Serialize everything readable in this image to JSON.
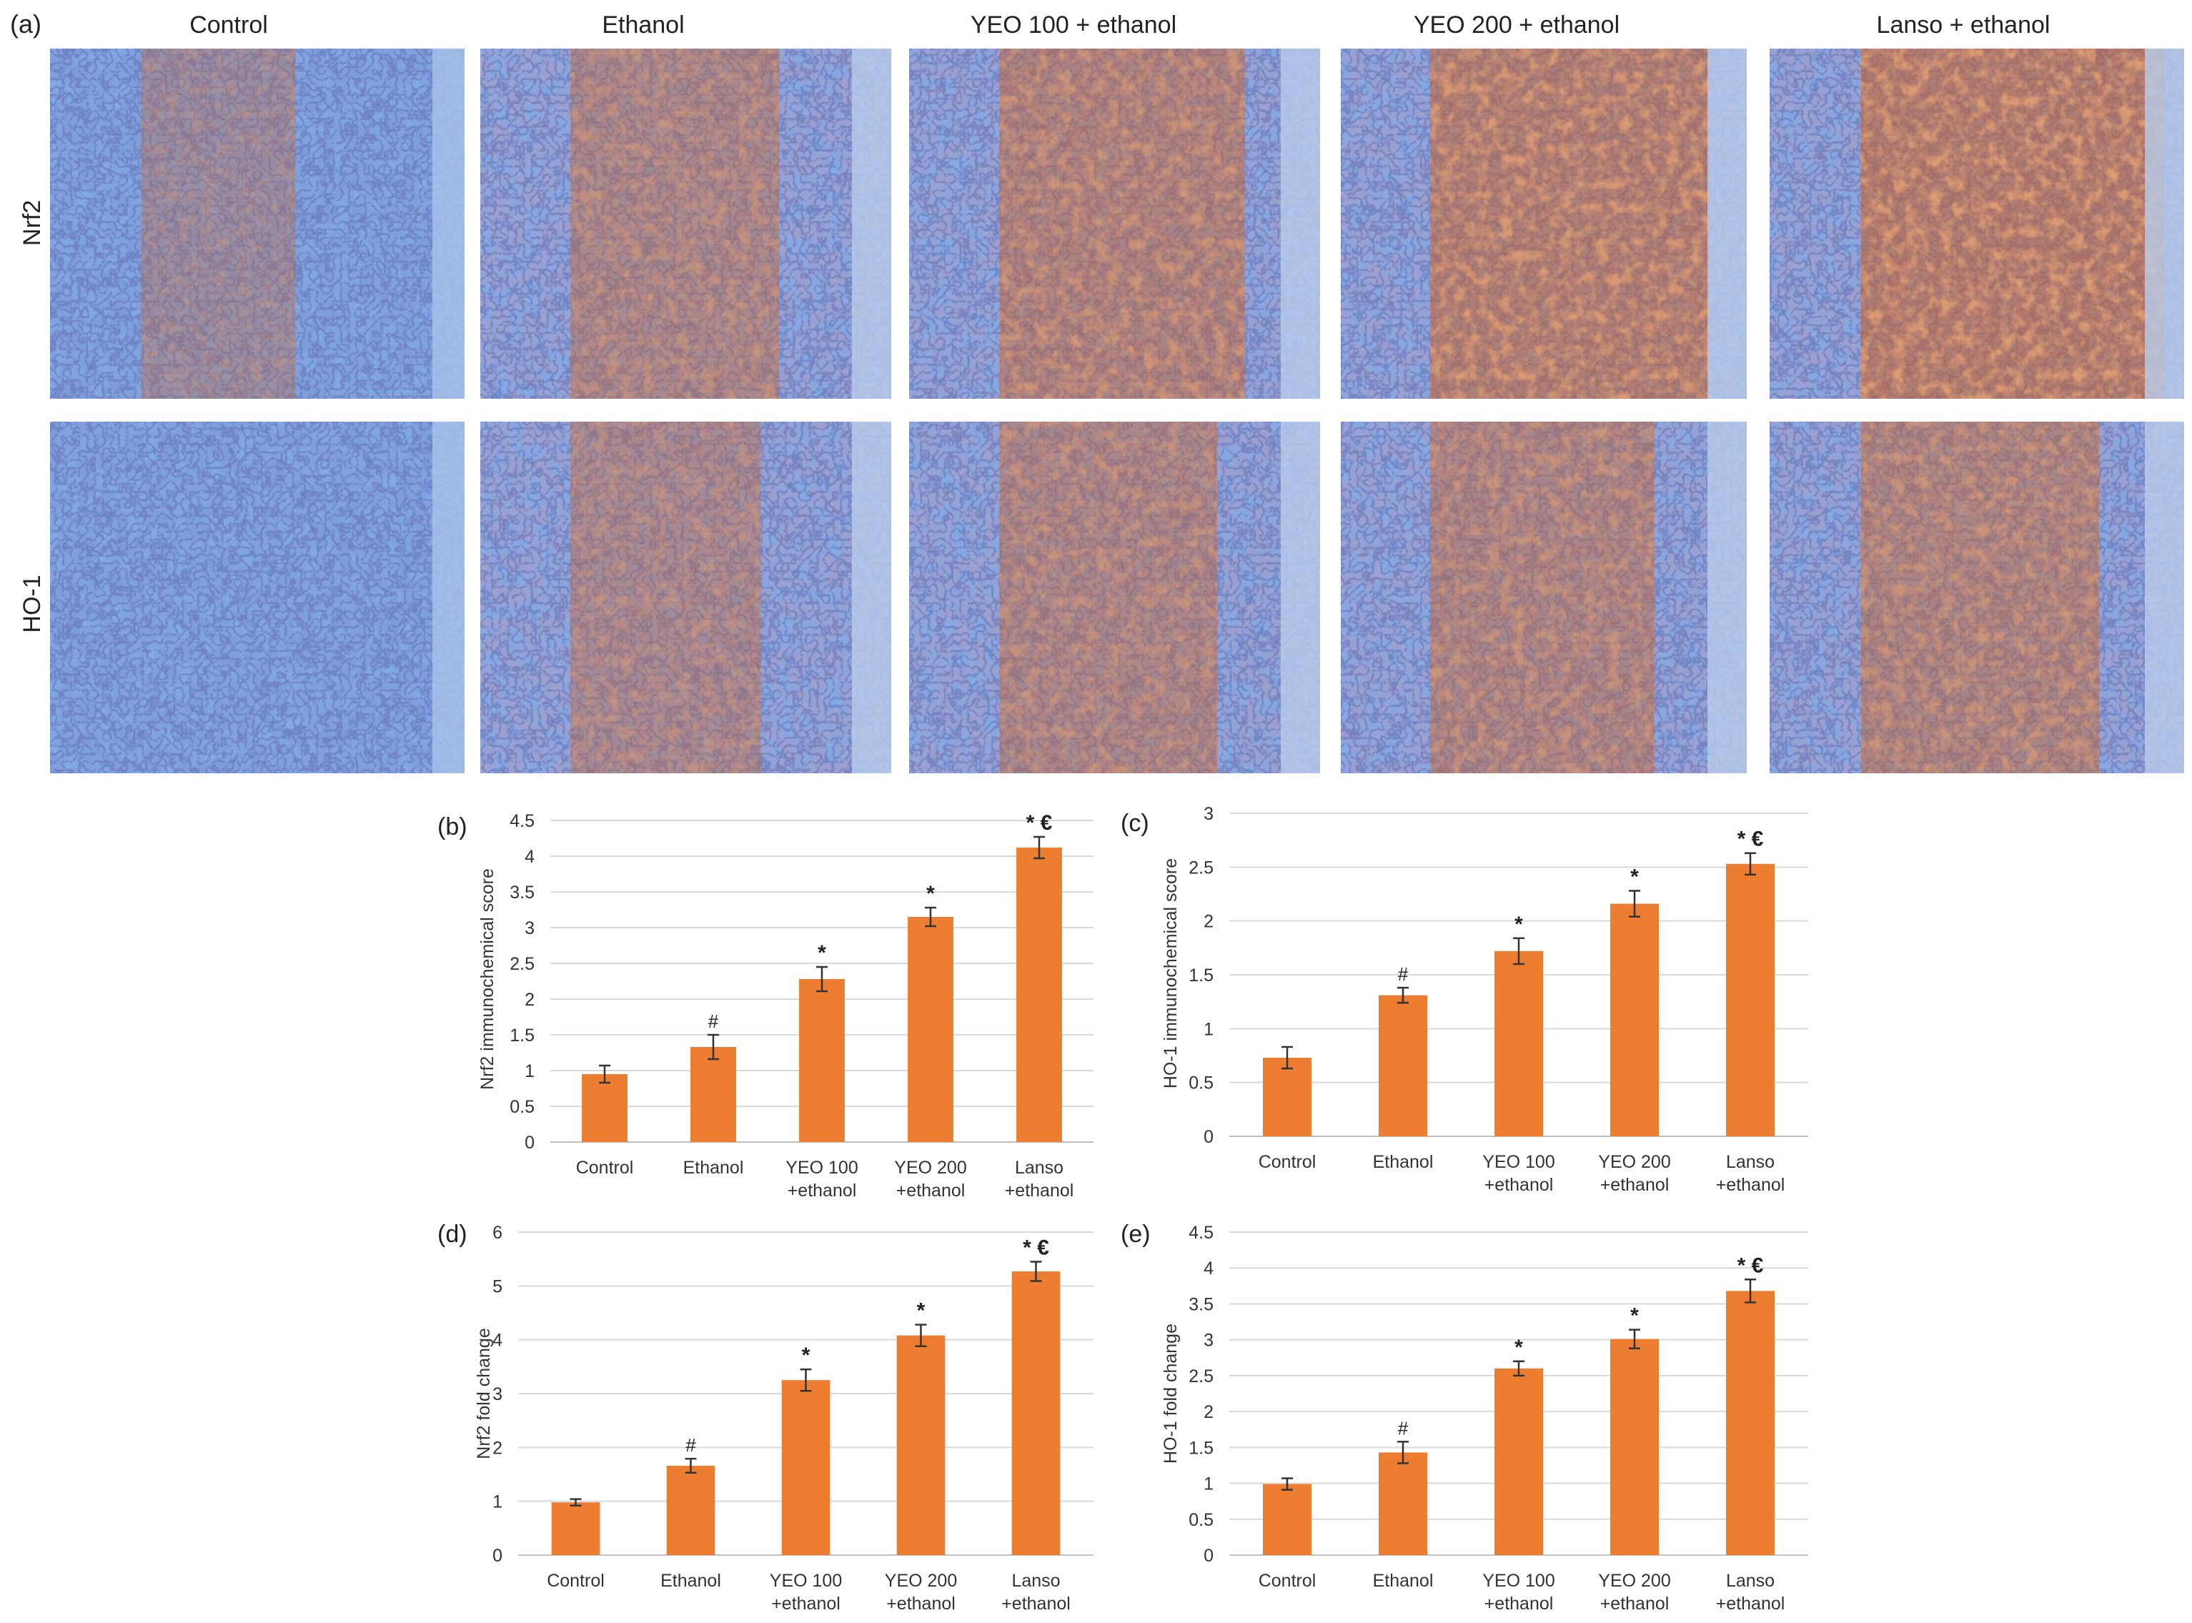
{
  "figure": {
    "label_a": "(a)",
    "columns": [
      "Control",
      "Ethanol",
      "YEO 100 + ethanol",
      "YEO 200 + ethanol",
      "Lanso  + ethanol"
    ],
    "rows": [
      "Nrf2",
      "HO-1"
    ],
    "micrographs": [
      {
        "row": "Nrf2",
        "col": "Control",
        "stain": "blue",
        "brown_level": 0.05
      },
      {
        "row": "Nrf2",
        "col": "Ethanol",
        "stain": "mixed",
        "brown_level": 0.35
      },
      {
        "row": "Nrf2",
        "col": "YEO 100 + ethanol",
        "stain": "brown",
        "brown_level": 0.55
      },
      {
        "row": "Nrf2",
        "col": "YEO 200 + ethanol",
        "stain": "brown",
        "brown_level": 0.75
      },
      {
        "row": "Nrf2",
        "col": "Lanso  + ethanol",
        "stain": "brown",
        "brown_level": 0.85
      },
      {
        "row": "HO-1",
        "col": "Control",
        "stain": "blue",
        "brown_level": 0.0
      },
      {
        "row": "HO-1",
        "col": "Ethanol",
        "stain": "mixed",
        "brown_level": 0.25
      },
      {
        "row": "HO-1",
        "col": "YEO 100 + ethanol",
        "stain": "mixed",
        "brown_level": 0.4
      },
      {
        "row": "HO-1",
        "col": "YEO 200 + ethanol",
        "stain": "mixed",
        "brown_level": 0.45
      },
      {
        "row": "HO-1",
        "col": "Lanso  + ethanol",
        "stain": "mixed",
        "brown_level": 0.5
      }
    ]
  },
  "colors": {
    "bar": "#ED7D31",
    "grid": "#D9D9D9",
    "blue_stain": "#3F6FC8",
    "brown_stain": "#C2602B",
    "pink_bg": "#E9C8D8"
  },
  "chart_data": [
    {
      "panel": "(b)",
      "type": "bar",
      "categories": [
        [
          "Control"
        ],
        [
          "Ethanol"
        ],
        [
          "YEO 100",
          "+ethanol"
        ],
        [
          "YEO 200",
          "+ethanol"
        ],
        [
          "Lanso",
          "+ethanol"
        ]
      ],
      "values": [
        0.95,
        1.33,
        2.28,
        3.15,
        4.12
      ],
      "errors": [
        0.12,
        0.17,
        0.17,
        0.13,
        0.15
      ],
      "annotations": [
        "",
        "#",
        "*",
        "*",
        "* €"
      ],
      "ylabel": "Nrf2 immunochemical score",
      "ylim": [
        0,
        4.5
      ],
      "yticks": [
        "0",
        "0.5",
        "1",
        "1.5",
        "2",
        "2.5",
        "3",
        "3.5",
        "4",
        "4.5"
      ]
    },
    {
      "panel": "(c)",
      "type": "bar",
      "categories": [
        [
          "Control"
        ],
        [
          "Ethanol"
        ],
        [
          "YEO 100",
          "+ethanol"
        ],
        [
          "YEO 200",
          "+ethanol"
        ],
        [
          "Lanso",
          "+ethanol"
        ]
      ],
      "values": [
        0.73,
        1.31,
        1.72,
        2.16,
        2.53
      ],
      "errors": [
        0.1,
        0.07,
        0.12,
        0.12,
        0.1
      ],
      "annotations": [
        "",
        "#",
        "*",
        "*",
        "* €"
      ],
      "ylabel": "HO-1 immunochemical score",
      "ylim": [
        0,
        3
      ],
      "yticks": [
        "0",
        "0.5",
        "1",
        "1.5",
        "2",
        "2.5",
        "3"
      ]
    },
    {
      "panel": "(d)",
      "type": "bar",
      "categories": [
        [
          "Control"
        ],
        [
          "Ethanol"
        ],
        [
          "YEO 100",
          "+ethanol"
        ],
        [
          "YEO 200",
          "+ethanol"
        ],
        [
          "Lanso",
          "+ethanol"
        ]
      ],
      "values": [
        0.98,
        1.66,
        3.25,
        4.08,
        5.27
      ],
      "errors": [
        0.06,
        0.13,
        0.2,
        0.2,
        0.18
      ],
      "annotations": [
        "",
        "#",
        "*",
        "*",
        "* €"
      ],
      "ylabel": "Nrf2 fold change",
      "ylim": [
        0,
        6
      ],
      "yticks": [
        "0",
        "1",
        "2",
        "3",
        "4",
        "5",
        "6"
      ]
    },
    {
      "panel": "(e)",
      "type": "bar",
      "categories": [
        [
          "Control"
        ],
        [
          "Ethanol"
        ],
        [
          "YEO 100",
          "+ethanol"
        ],
        [
          "YEO 200",
          "+ethanol"
        ],
        [
          "Lanso",
          "+ethanol"
        ]
      ],
      "values": [
        0.99,
        1.43,
        2.6,
        3.01,
        3.68
      ],
      "errors": [
        0.08,
        0.15,
        0.1,
        0.13,
        0.16
      ],
      "annotations": [
        "",
        "#",
        "*",
        "*",
        "* €"
      ],
      "ylabel": "HO-1 fold change",
      "ylim": [
        0,
        4.5
      ],
      "yticks": [
        "0",
        "0.5",
        "1",
        "1.5",
        "2",
        "2.5",
        "3",
        "3.5",
        "4",
        "4.5"
      ]
    }
  ]
}
